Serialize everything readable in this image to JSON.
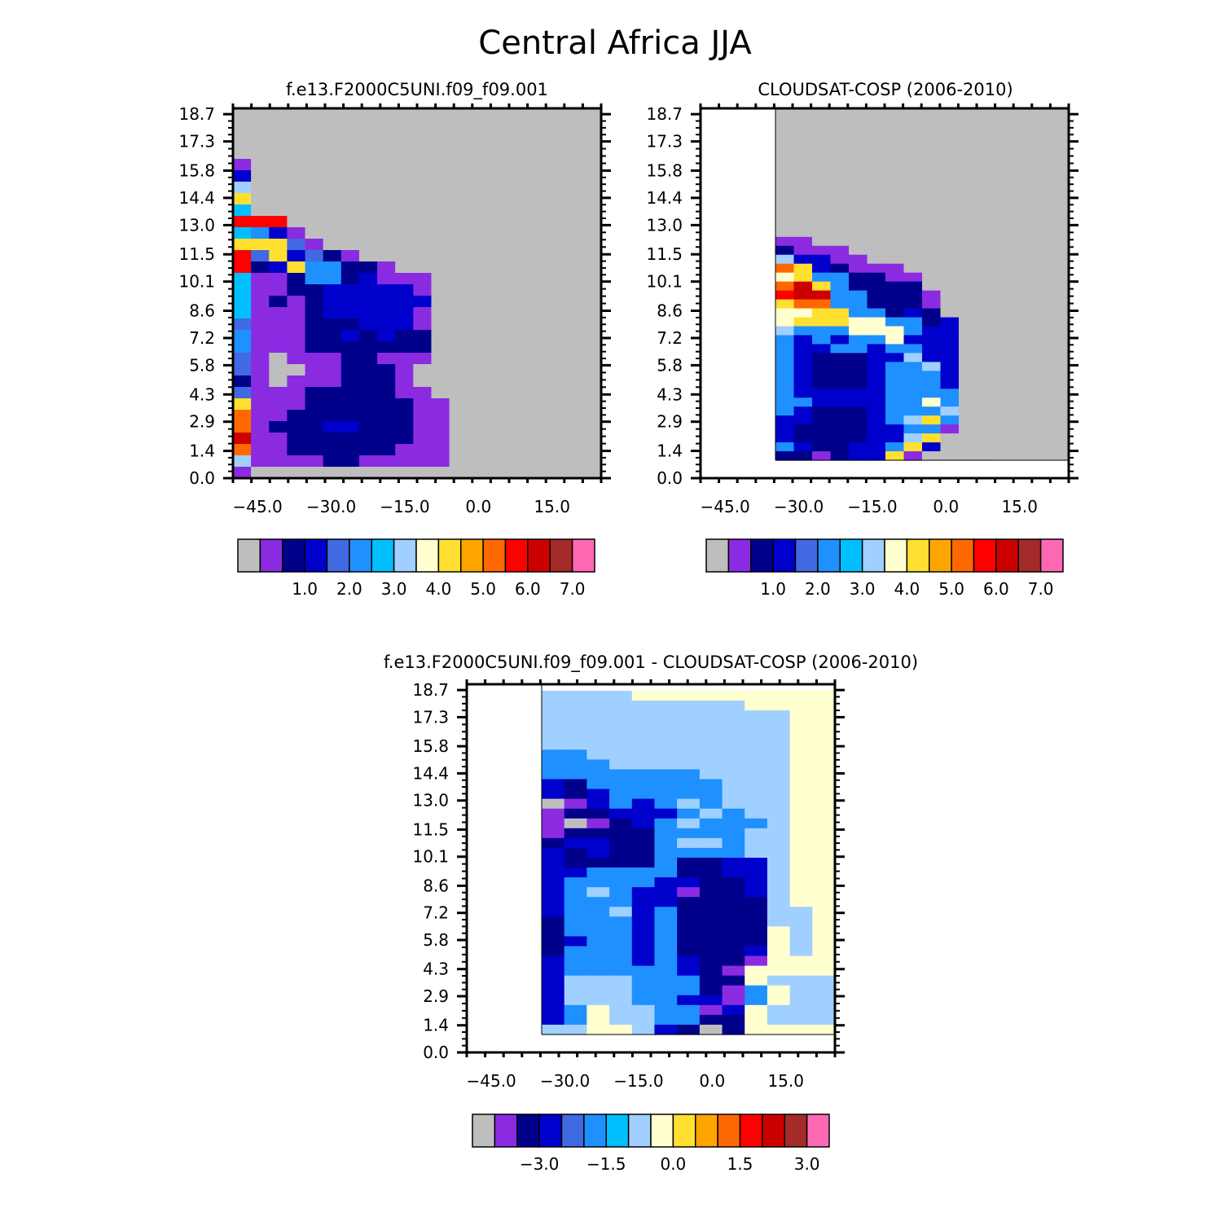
{
  "figure_title": "Central Africa JJA",
  "colors": {
    "missing": "#bebebe",
    "palette": [
      "#bebebe",
      "#8a2be2",
      "#00008b",
      "#0000cd",
      "#4169e1",
      "#1e90ff",
      "#00bfff",
      "#a0d0ff",
      "#ffffd0",
      "#ffe030",
      "#ffa500",
      "#ff6800",
      "#ff0000",
      "#cd0000",
      "#a52a2a",
      "#ff69b4"
    ]
  },
  "chart_data": [
    {
      "type": "heatmap",
      "title": "f.e13.F2000C5UNI.f09_f09.001",
      "xticks": [
        "-45.0",
        "-30.0",
        "-15.0",
        "0.0",
        "15.0"
      ],
      "yticks": [
        "18.7",
        "17.3",
        "15.8",
        "14.4",
        "13.0",
        "11.5",
        "10.1",
        "8.6",
        "7.2",
        "5.8",
        "4.3",
        "2.9",
        "1.4",
        "0.0"
      ],
      "xlim": [
        -50,
        25
      ],
      "ylim": [
        0.0,
        19.0
      ],
      "colorbar_labels": [
        "1.0",
        "2.0",
        "3.0",
        "4.0",
        "5.0",
        "6.0",
        "7.0"
      ],
      "colorbar_levels": [
        0.5,
        1.0,
        1.5,
        2.0,
        2.5,
        3.0,
        3.5,
        4.0,
        4.5,
        5.0,
        5.5,
        6.0,
        6.5,
        7.0
      ],
      "grid": [
        "GGGGGGGGGGGGGGG",
        "GGGGGGGGGGGGGGG",
        "PGGGGGGGGGGGGGG",
        "DGGGGGGGGGGGGGG",
        "LGGGGGGGGGGGGGG",
        "YGGGGGGGGGGGGGG",
        "KGGGGGGGGGGGGGG",
        "RRRGGGGGGGGGGGG",
        "KCDPGGGGGGGGGGG",
        "YYYBPGGGGGGGGGG",
        "RBYDBNPGGGGGGGG",
        "RNDYCCNNPGGGGGG",
        "KPPNCCNDPPPGGGG",
        "KPPNNDDDDDPGGGG",
        "KPNPNDDDDDDGGGG",
        "KPPPNDDDDDPGGGG",
        "BPPPNNNDDDPGGGG",
        "CPPPNNDNDNNGGGG",
        "CPPPNNNNNNNGGGG",
        "BPGPPPNNPPPGGGG",
        "BPGGPPNNNPGGGGG",
        "NPGPPPNNNPGGGGG",
        "BPPPNNNNNPPGGGG",
        "YPPPNNNNNNPPGGG",
        "OPPNNNNNNNPPGGG",
        "OPNNNDDNNNPPGGG",
        "MPPNNNNNNNPPGGG",
        "OPPNNNNNNPPPGGG",
        "LPPPPNNPPPPPGGG",
        "PGGGGGGGGGGGGGG"
      ]
    },
    {
      "type": "heatmap",
      "title": "CLOUDSAT-COSP (2006-2010)",
      "xticks": [
        "-45.0",
        "-30.0",
        "-15.0",
        "0.0",
        "15.0"
      ],
      "yticks": [
        "18.7",
        "17.3",
        "15.8",
        "14.4",
        "13.0",
        "11.5",
        "10.1",
        "8.6",
        "7.2",
        "5.8",
        "4.3",
        "2.9",
        "1.4",
        "0.0"
      ],
      "xlim": [
        -50,
        25
      ],
      "ylim": [
        0.0,
        19.0
      ],
      "colorbar_labels": [
        "1.0",
        "2.0",
        "3.0",
        "4.0",
        "5.0",
        "6.0",
        "7.0"
      ],
      "colorbar_levels": [
        0.5,
        1.0,
        1.5,
        2.0,
        2.5,
        3.0,
        3.5,
        4.0,
        4.5,
        5.0,
        5.5,
        6.0,
        6.5,
        7.0
      ],
      "grid": [
        "GGGGGGGGGGGG",
        "GGGGGGGGGGGG",
        "GGGGGGGGGGGG",
        "GGGGGGGGGGGG",
        "GGGGGGGGGGGG",
        "GGGGGGGGGGGG",
        "PPGGGGGGGGGG",
        "NPPPGGGGGGGG",
        "LDDPPGGGGGGG",
        "OYDNPPPGGGGG",
        "WYCCNNPPGGGG",
        "OMYCNNNNGGGG",
        "RMMCCNNNPGGG",
        "YOOCCNNNPGGG",
        "WWYYCCNDNGGG",
        "WYYYWWCCNDGG",
        "LCCCWWWCDDGG",
        "CDCDCCWDDDGG",
        "CDDCCDCCDDGG",
        "CDNNNDDLDDGG",
        "CDNNNDCCLDGG",
        "CDNNNDCCCDGG",
        "CDNNNDCCCDGG",
        "CDDDDDCCCCGG",
        "CCDDDDCCWCGG",
        "CDNNNDCCCLGG",
        "DDNNNDCLYCGG",
        "DNNNNDDCCPGG",
        "DNNNNDDLYGGG",
        "CDNNDDCYDGGG",
        "NNPNDDYPGGGG"
      ]
    },
    {
      "type": "heatmap",
      "title": "f.e13.F2000C5UNI.f09_f09.001 - CLOUDSAT-COSP (2006-2010)",
      "xticks": [
        "-45.0",
        "-30.0",
        "-15.0",
        "0.0",
        "15.0"
      ],
      "yticks": [
        "18.7",
        "17.3",
        "15.8",
        "14.4",
        "13.0",
        "11.5",
        "10.1",
        "8.6",
        "7.2",
        "5.8",
        "4.3",
        "2.9",
        "1.4",
        "0.0"
      ],
      "xlim": [
        -50,
        25
      ],
      "ylim": [
        0.0,
        19.0
      ],
      "colorbar_labels": [
        "-3.0",
        "-1.5",
        "0.0",
        "1.5",
        "3.0"
      ],
      "colorbar_levels": [
        -3.5,
        -3.0,
        -2.5,
        -2.0,
        -1.5,
        -1.0,
        -0.5,
        0.0,
        0.5,
        1.0,
        1.5,
        2.0,
        2.5,
        3.0
      ],
      "grid": [
        "LLLLWWWWWWWWW",
        "LLLLLLLLLWWWW",
        "LLLLLLLLLLLWW",
        "LLLLLLLLLLLWW",
        "LLLLLLLLLLLWW",
        "LLLLLLLLLLLWW",
        "CCLLLLLLLLLWW",
        "CCCLLLLLLLLWW",
        "CCCCCCCLLLLWW",
        "DNCCCCCCLLLWW",
        "DNDCCCCCLLLWW",
        "GPDCDCLCLLLWW",
        "PNNDDDCLCLLWW",
        "PGPNDCLCCCLWW",
        "PNNNNCCCCLLWW",
        "NDDNNCLLCLLWW",
        "DNDNNCCCCLLWW",
        "DNNNNCNNDDLWW",
        "DDCCCCNNDDLWW",
        "DCCCCDDNNDLWW",
        "DCLCDDPNNDLWW",
        "DCCCDDNNNNLWW",
        "DCCLDCNNNNLLW",
        "NCCCDCNNNNLLW",
        "NCCCDCNNNNWLW",
        "NDCCDCNNNNWLW",
        "NCCCDCNNNDWLW",
        "DCCCDCDNNPWWW",
        "DCCCCCDNPWWWW",
        "DLLLCCCNNWLLL",
        "DLLLCCCNPCWLL",
        "DLLLCCDDPCWLL",
        "DCWLLCCPDWLLL",
        "DCWLLCCNNWLLL",
        "LLWWLDNGNWWWW"
      ]
    }
  ]
}
